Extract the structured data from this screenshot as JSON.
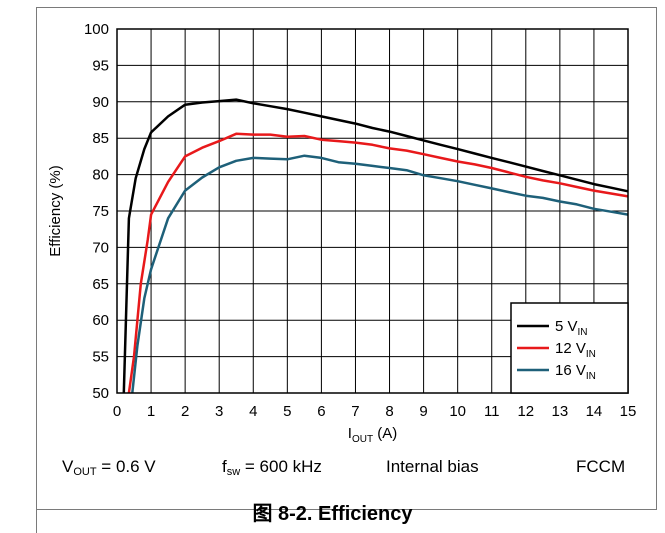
{
  "chart_data": {
    "type": "line",
    "xlabel": {
      "main": "I",
      "sub": "OUT",
      "unit": " (A)"
    },
    "ylabel": "Efficiency (%)",
    "xlim": [
      0,
      15
    ],
    "ylim": [
      50,
      100
    ],
    "x_ticks": [
      0,
      1,
      2,
      3,
      4,
      5,
      6,
      7,
      8,
      9,
      10,
      11,
      12,
      13,
      14,
      15
    ],
    "y_ticks": [
      50,
      55,
      60,
      65,
      70,
      75,
      80,
      85,
      90,
      95,
      100
    ],
    "grid": true,
    "legend_position": "bottom-right",
    "series": [
      {
        "name": {
          "main": "5 V",
          "sub": "IN"
        },
        "color": "#000000",
        "x": [
          0.2,
          0.35,
          0.55,
          0.8,
          1.0,
          1.5,
          2.0,
          2.5,
          3.0,
          3.5,
          4.0,
          4.5,
          5.0,
          5.5,
          6.0,
          6.5,
          7.0,
          7.5,
          8.0,
          8.5,
          9.0,
          9.5,
          10.0,
          10.5,
          11.0,
          11.5,
          12.0,
          12.5,
          13.0,
          13.5,
          14.0,
          14.5,
          15.0
        ],
        "y": [
          50.0,
          74.0,
          79.5,
          83.5,
          85.8,
          88.0,
          89.6,
          89.9,
          90.1,
          90.3,
          89.8,
          89.4,
          89.0,
          88.5,
          88.0,
          87.5,
          87.0,
          86.4,
          85.9,
          85.3,
          84.7,
          84.1,
          83.5,
          82.9,
          82.3,
          81.7,
          81.1,
          80.5,
          79.9,
          79.3,
          78.7,
          78.2,
          77.7
        ]
      },
      {
        "name": {
          "main": "12 V",
          "sub": "IN"
        },
        "color": "#e8191b",
        "x": [
          0.35,
          0.5,
          0.7,
          0.9,
          1.0,
          1.5,
          2.0,
          2.5,
          3.0,
          3.5,
          4.0,
          4.5,
          5.0,
          5.5,
          6.0,
          6.5,
          7.0,
          7.5,
          8.0,
          8.5,
          9.0,
          9.5,
          10.0,
          10.5,
          11.0,
          11.5,
          12.0,
          12.5,
          13.0,
          13.5,
          14.0,
          14.5,
          15.0
        ],
        "y": [
          50.0,
          55.0,
          65.0,
          71.0,
          74.5,
          79.0,
          82.5,
          83.7,
          84.6,
          85.6,
          85.5,
          85.5,
          85.2,
          85.3,
          84.8,
          84.6,
          84.4,
          84.1,
          83.6,
          83.3,
          82.8,
          82.3,
          81.8,
          81.4,
          80.9,
          80.3,
          79.7,
          79.2,
          78.8,
          78.3,
          77.8,
          77.4,
          77.0
        ]
      },
      {
        "name": {
          "main": "16 V",
          "sub": "IN"
        },
        "color": "#1e6079",
        "x": [
          0.45,
          0.6,
          0.8,
          1.0,
          1.5,
          2.0,
          2.5,
          3.0,
          3.5,
          4.0,
          4.5,
          5.0,
          5.5,
          6.0,
          6.5,
          7.0,
          7.5,
          8.0,
          8.5,
          9.0,
          9.5,
          10.0,
          10.5,
          11.0,
          11.5,
          12.0,
          12.5,
          13.0,
          13.5,
          14.0,
          14.5,
          15.0
        ],
        "y": [
          50.0,
          56.5,
          63.0,
          67.0,
          74.0,
          77.8,
          79.6,
          81.0,
          81.9,
          82.3,
          82.2,
          82.1,
          82.6,
          82.3,
          81.7,
          81.5,
          81.2,
          80.9,
          80.6,
          79.9,
          79.5,
          79.1,
          78.6,
          78.1,
          77.6,
          77.1,
          76.8,
          76.3,
          75.9,
          75.3,
          74.9,
          74.5
        ]
      }
    ]
  },
  "conditions": {
    "vout": {
      "main": "V",
      "sub": "OUT",
      "rest": " = 0.6 V"
    },
    "fsw": {
      "main": "f",
      "sub": "sw",
      "rest": " = 600 kHz"
    },
    "bias": "Internal bias",
    "mode": "FCCM"
  },
  "caption": {
    "prefix": "图 ",
    "text": "8-2. Efficiency"
  }
}
